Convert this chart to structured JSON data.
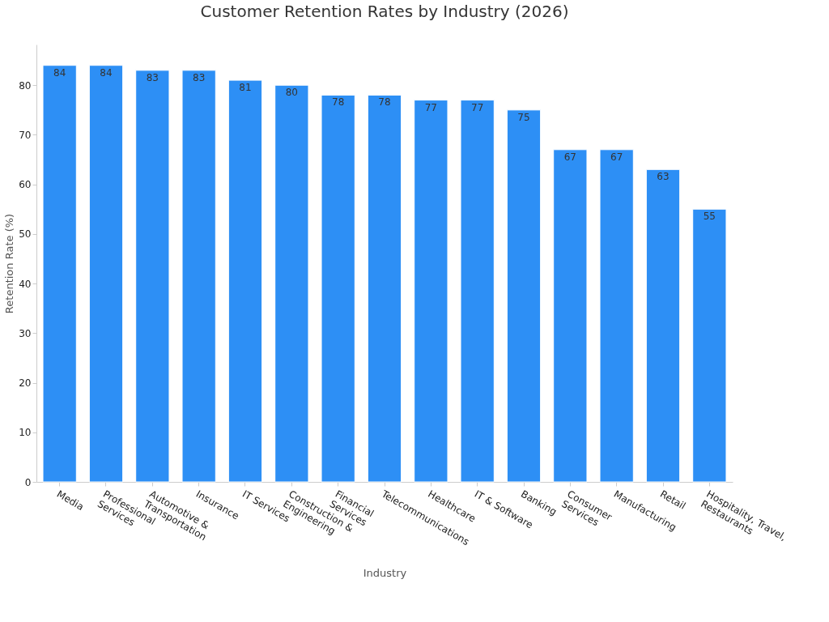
{
  "chart_data": {
    "type": "bar",
    "title": "Customer Retention Rates by Industry (2026)",
    "xlabel": "Industry",
    "ylabel": "Retention Rate (%)",
    "categories": [
      "Media",
      "Professional\nServices",
      "Automotive &\nTransportation",
      "Insurance",
      "IT Services",
      "Construction &\nEngineering",
      "Financial\nServices",
      "Telecommunications",
      "Healthcare",
      "IT & Software",
      "Banking",
      "Consumer\nServices",
      "Manufacturing",
      "Retail",
      "Hospitality, Travel,\nRestaurants"
    ],
    "values": [
      84,
      84,
      83,
      83,
      81,
      80,
      78,
      78,
      77,
      77,
      75,
      67,
      67,
      63,
      55
    ],
    "color": "#2d8ff5",
    "ylim": [
      0,
      88.2
    ],
    "yticks": [
      0,
      10,
      20,
      30,
      40,
      50,
      60,
      70,
      80
    ],
    "grid": false,
    "data_labels": true
  }
}
